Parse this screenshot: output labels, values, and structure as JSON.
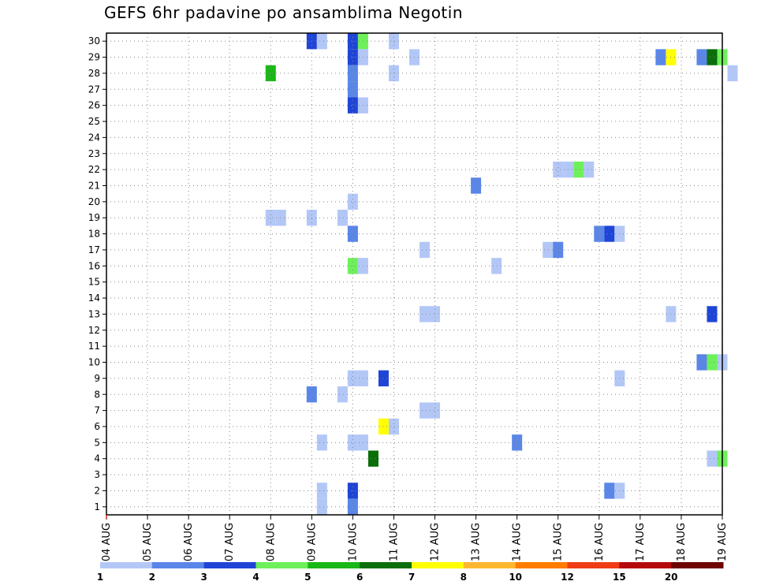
{
  "chart_data": {
    "type": "heatmap",
    "title": "GEFS 6hr padavine po ansamblima Negotin",
    "x_tick_labels": [
      "04 AUG",
      "05 AUG",
      "06 AUG",
      "07 AUG",
      "08 AUG",
      "09 AUG",
      "10 AUG",
      "11 AUG",
      "12 AUG",
      "13 AUG",
      "14 AUG",
      "15 AUG",
      "16 AUG",
      "17 AUG",
      "18 AUG",
      "19 AUG"
    ],
    "y_tick_labels": [
      "1",
      "2",
      "3",
      "4",
      "5",
      "6",
      "7",
      "8",
      "9",
      "10",
      "11",
      "12",
      "13",
      "14",
      "15",
      "16",
      "17",
      "18",
      "19",
      "20",
      "21",
      "22",
      "23",
      "24",
      "25",
      "26",
      "27",
      "28",
      "29",
      "30"
    ],
    "xlim": [
      "04 AUG 00Z",
      "19 AUG 00Z"
    ],
    "ylim": [
      0.5,
      30.5
    ],
    "grid": true,
    "colorbar": {
      "labels": [
        "1",
        "2",
        "3",
        "4",
        "5",
        "6",
        "7",
        "8",
        "10",
        "12",
        "15",
        "20"
      ],
      "colors": [
        "#b3c7f7",
        "#5a86e8",
        "#1f45d6",
        "#6ef05a",
        "#19b817",
        "#0a6e0a",
        "#ffff00",
        "#ffb732",
        "#ff7d00",
        "#f03c14",
        "#b40a0a",
        "#6e0000"
      ]
    },
    "cells": [
      {
        "member": 30,
        "time": "09 AUG 00Z",
        "color": "#1f45d6"
      },
      {
        "member": 30,
        "time": "09 AUG 06Z",
        "color": "#b3c7f7"
      },
      {
        "member": 30,
        "time": "10 AUG 00Z",
        "color": "#1f45d6"
      },
      {
        "member": 30,
        "time": "10 AUG 06Z",
        "color": "#6ef05a"
      },
      {
        "member": 30,
        "time": "11 AUG 00Z",
        "color": "#b3c7f7"
      },
      {
        "member": 29,
        "time": "10 AUG 00Z",
        "color": "#1f45d6"
      },
      {
        "member": 29,
        "time": "10 AUG 06Z",
        "color": "#b3c7f7"
      },
      {
        "member": 29,
        "time": "11 AUG 12Z",
        "color": "#b3c7f7"
      },
      {
        "member": 29,
        "time": "17 AUG 12Z",
        "color": "#5a86e8"
      },
      {
        "member": 29,
        "time": "17 AUG 18Z",
        "color": "#ffff00"
      },
      {
        "member": 29,
        "time": "18 AUG 12Z",
        "color": "#5a86e8"
      },
      {
        "member": 29,
        "time": "18 AUG 18Z",
        "color": "#0a6e0a"
      },
      {
        "member": 29,
        "time": "19 AUG 00Z",
        "color": "#6ef05a"
      },
      {
        "member": 28,
        "time": "08 AUG 00Z",
        "color": "#19b817"
      },
      {
        "member": 28,
        "time": "10 AUG 00Z",
        "color": "#5a86e8"
      },
      {
        "member": 28,
        "time": "11 AUG 00Z",
        "color": "#b3c7f7"
      },
      {
        "member": 28,
        "time": "19 AUG 06Z",
        "color": "#b3c7f7"
      },
      {
        "member": 27,
        "time": "10 AUG 00Z",
        "color": "#5a86e8"
      },
      {
        "member": 26,
        "time": "10 AUG 00Z",
        "color": "#1f45d6"
      },
      {
        "member": 26,
        "time": "10 AUG 06Z",
        "color": "#b3c7f7"
      },
      {
        "member": 22,
        "time": "15 AUG 00Z",
        "color": "#b3c7f7"
      },
      {
        "member": 22,
        "time": "15 AUG 06Z",
        "color": "#b3c7f7"
      },
      {
        "member": 22,
        "time": "15 AUG 12Z",
        "color": "#6ef05a"
      },
      {
        "member": 22,
        "time": "15 AUG 18Z",
        "color": "#b3c7f7"
      },
      {
        "member": 21,
        "time": "13 AUG 00Z",
        "color": "#5a86e8"
      },
      {
        "member": 20,
        "time": "10 AUG 00Z",
        "color": "#b3c7f7"
      },
      {
        "member": 19,
        "time": "08 AUG 00Z",
        "color": "#b3c7f7"
      },
      {
        "member": 19,
        "time": "08 AUG 06Z",
        "color": "#b3c7f7"
      },
      {
        "member": 19,
        "time": "09 AUG 00Z",
        "color": "#b3c7f7"
      },
      {
        "member": 19,
        "time": "09 AUG 18Z",
        "color": "#b3c7f7"
      },
      {
        "member": 18,
        "time": "10 AUG 00Z",
        "color": "#5a86e8"
      },
      {
        "member": 18,
        "time": "16 AUG 00Z",
        "color": "#5a86e8"
      },
      {
        "member": 18,
        "time": "16 AUG 06Z",
        "color": "#1f45d6"
      },
      {
        "member": 18,
        "time": "16 AUG 12Z",
        "color": "#b3c7f7"
      },
      {
        "member": 17,
        "time": "11 AUG 18Z",
        "color": "#b3c7f7"
      },
      {
        "member": 17,
        "time": "14 AUG 18Z",
        "color": "#b3c7f7"
      },
      {
        "member": 17,
        "time": "15 AUG 00Z",
        "color": "#5a86e8"
      },
      {
        "member": 16,
        "time": "10 AUG 00Z",
        "color": "#6ef05a"
      },
      {
        "member": 16,
        "time": "10 AUG 06Z",
        "color": "#b3c7f7"
      },
      {
        "member": 16,
        "time": "13 AUG 12Z",
        "color": "#b3c7f7"
      },
      {
        "member": 13,
        "time": "11 AUG 18Z",
        "color": "#b3c7f7"
      },
      {
        "member": 13,
        "time": "12 AUG 00Z",
        "color": "#b3c7f7"
      },
      {
        "member": 13,
        "time": "17 AUG 18Z",
        "color": "#b3c7f7"
      },
      {
        "member": 13,
        "time": "18 AUG 18Z",
        "color": "#1f45d6"
      },
      {
        "member": 10,
        "time": "18 AUG 12Z",
        "color": "#5a86e8"
      },
      {
        "member": 10,
        "time": "18 AUG 18Z",
        "color": "#6ef05a"
      },
      {
        "member": 10,
        "time": "19 AUG 00Z",
        "color": "#b3c7f7"
      },
      {
        "member": 9,
        "time": "10 AUG 00Z",
        "color": "#b3c7f7"
      },
      {
        "member": 9,
        "time": "10 AUG 06Z",
        "color": "#b3c7f7"
      },
      {
        "member": 9,
        "time": "10 AUG 18Z",
        "color": "#1f45d6"
      },
      {
        "member": 9,
        "time": "16 AUG 12Z",
        "color": "#b3c7f7"
      },
      {
        "member": 8,
        "time": "09 AUG 00Z",
        "color": "#5a86e8"
      },
      {
        "member": 8,
        "time": "09 AUG 18Z",
        "color": "#b3c7f7"
      },
      {
        "member": 7,
        "time": "11 AUG 18Z",
        "color": "#b3c7f7"
      },
      {
        "member": 7,
        "time": "12 AUG 00Z",
        "color": "#b3c7f7"
      },
      {
        "member": 6,
        "time": "10 AUG 18Z",
        "color": "#ffff00"
      },
      {
        "member": 6,
        "time": "11 AUG 00Z",
        "color": "#b3c7f7"
      },
      {
        "member": 5,
        "time": "09 AUG 06Z",
        "color": "#b3c7f7"
      },
      {
        "member": 5,
        "time": "10 AUG 00Z",
        "color": "#b3c7f7"
      },
      {
        "member": 5,
        "time": "10 AUG 06Z",
        "color": "#b3c7f7"
      },
      {
        "member": 5,
        "time": "14 AUG 00Z",
        "color": "#5a86e8"
      },
      {
        "member": 4,
        "time": "10 AUG 12Z",
        "color": "#0a6e0a"
      },
      {
        "member": 4,
        "time": "18 AUG 18Z",
        "color": "#b3c7f7"
      },
      {
        "member": 4,
        "time": "19 AUG 00Z",
        "color": "#6ef05a"
      },
      {
        "member": 2,
        "time": "09 AUG 06Z",
        "color": "#b3c7f7"
      },
      {
        "member": 2,
        "time": "10 AUG 00Z",
        "color": "#1f45d6"
      },
      {
        "member": 2,
        "time": "16 AUG 06Z",
        "color": "#5a86e8"
      },
      {
        "member": 2,
        "time": "16 AUG 12Z",
        "color": "#b3c7f7"
      },
      {
        "member": 1,
        "time": "09 AUG 06Z",
        "color": "#b3c7f7"
      },
      {
        "member": 1,
        "time": "10 AUG 00Z",
        "color": "#5a86e8"
      }
    ]
  }
}
